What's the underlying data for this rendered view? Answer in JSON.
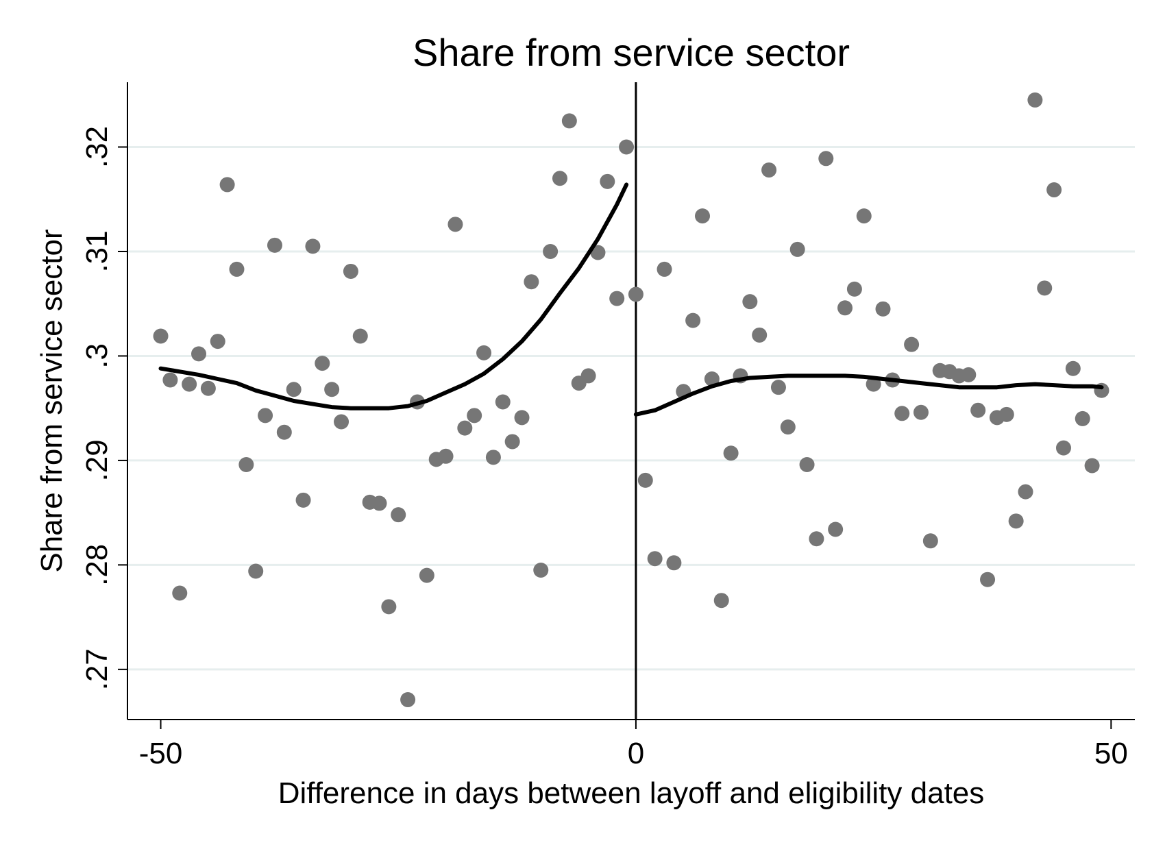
{
  "chart_data": {
    "type": "scatter",
    "title": "Share from service sector",
    "xlabel": "Difference in days between layoff and eligibility dates",
    "ylabel": "Share from service sector",
    "xlim": [
      -53.5,
      52.5
    ],
    "ylim": [
      0.2652,
      0.3262
    ],
    "x_ticks": [
      -50,
      0,
      50
    ],
    "x_tick_labels": [
      "-50",
      "0",
      "50"
    ],
    "y_ticks": [
      0.27,
      0.28,
      0.29,
      0.3,
      0.31,
      0.32
    ],
    "y_tick_labels": [
      ".27",
      ".28",
      ".29",
      ".3",
      ".31",
      ".32"
    ],
    "grid": "horizontal",
    "cutoff_line_x": 0,
    "colors": {
      "points": "#767676",
      "fit": "#000000",
      "grid": "#e6eeee",
      "axis": "#000000"
    },
    "series": [
      {
        "type": "scatter",
        "x": [
          -50,
          -49,
          -48,
          -47,
          -46,
          -45,
          -44,
          -43,
          -42,
          -41,
          -40,
          -39,
          -38,
          -37,
          -36,
          -35,
          -34,
          -33,
          -32,
          -31,
          -30,
          -29,
          -28,
          -27,
          -26,
          -25,
          -24,
          -23,
          -22,
          -21,
          -20,
          -19,
          -18,
          -17,
          -16,
          -15,
          -14,
          -13,
          -12,
          -11,
          -10,
          -9,
          -8,
          -7,
          -6,
          -5,
          -4,
          -3,
          -2,
          -1,
          0,
          1,
          2,
          3,
          4,
          5,
          6,
          7,
          8,
          9,
          10,
          11,
          12,
          13,
          14,
          15,
          16,
          17,
          18,
          19,
          20,
          21,
          22,
          23,
          24,
          25,
          26,
          27,
          28,
          29,
          30,
          31,
          32,
          33,
          34,
          35,
          36,
          37,
          38,
          39,
          40,
          41,
          42,
          43,
          44,
          45,
          46,
          47,
          48,
          49
        ],
        "y": [
          0.3019,
          0.2977,
          0.2773,
          0.2973,
          0.3002,
          0.2969,
          0.3014,
          0.3164,
          0.3083,
          0.2896,
          0.2794,
          0.2943,
          0.3106,
          0.2927,
          0.2968,
          0.2862,
          0.3105,
          0.2993,
          0.2968,
          0.2937,
          0.3081,
          0.3019,
          0.286,
          0.2859,
          0.276,
          0.2848,
          0.2671,
          0.2956,
          0.279,
          0.2901,
          0.2904,
          0.3126,
          0.2931,
          0.2943,
          0.3003,
          0.2903,
          0.2956,
          0.2918,
          0.2941,
          0.3071,
          0.2795,
          0.31,
          0.317,
          0.3225,
          0.2974,
          0.2981,
          0.3099,
          0.3167,
          0.3055,
          0.32,
          0.3059,
          0.2881,
          0.2806,
          0.3083,
          0.2802,
          0.2966,
          0.3034,
          0.3134,
          0.2978,
          0.2766,
          0.2907,
          0.2981,
          0.3052,
          0.302,
          0.3178,
          0.297,
          0.2932,
          0.3102,
          0.2896,
          0.2825,
          0.3189,
          0.2834,
          0.3046,
          0.3064,
          0.3134,
          0.2973,
          0.3045,
          0.2977,
          0.2945,
          0.3011,
          0.2946,
          0.2823,
          0.2986,
          0.2985,
          0.2981,
          0.2982,
          0.2948,
          0.2786,
          0.2941,
          0.2944,
          0.2842,
          0.287,
          0.3245,
          0.3065,
          0.3159,
          0.2912,
          0.2988,
          0.294,
          0.2895,
          0.2967
        ]
      },
      {
        "type": "line",
        "segment": "left",
        "x": [
          -50,
          -48,
          -46,
          -44,
          -42,
          -40,
          -38,
          -36,
          -34,
          -32,
          -30,
          -28,
          -26,
          -24,
          -22,
          -20,
          -18,
          -16,
          -14,
          -12,
          -10,
          -8,
          -6,
          -4,
          -2,
          -1
        ],
        "y": [
          0.2988,
          0.2985,
          0.2982,
          0.2978,
          0.2974,
          0.2967,
          0.2962,
          0.2957,
          0.2954,
          0.2951,
          0.295,
          0.295,
          0.295,
          0.2952,
          0.2957,
          0.2965,
          0.2973,
          0.2983,
          0.2997,
          0.3014,
          0.3035,
          0.306,
          0.3084,
          0.3112,
          0.3145,
          0.3164
        ]
      },
      {
        "type": "line",
        "segment": "right",
        "x": [
          0,
          2,
          4,
          6,
          8,
          10,
          12,
          14,
          16,
          18,
          20,
          22,
          24,
          26,
          28,
          30,
          32,
          34,
          36,
          38,
          40,
          42,
          44,
          46,
          48,
          49
        ],
        "y": [
          0.2944,
          0.2948,
          0.2956,
          0.2964,
          0.2971,
          0.2976,
          0.2979,
          0.298,
          0.2981,
          0.2981,
          0.2981,
          0.2981,
          0.298,
          0.2978,
          0.2976,
          0.2974,
          0.2972,
          0.297,
          0.297,
          0.297,
          0.2972,
          0.2973,
          0.2972,
          0.2971,
          0.2971,
          0.297
        ]
      }
    ]
  }
}
